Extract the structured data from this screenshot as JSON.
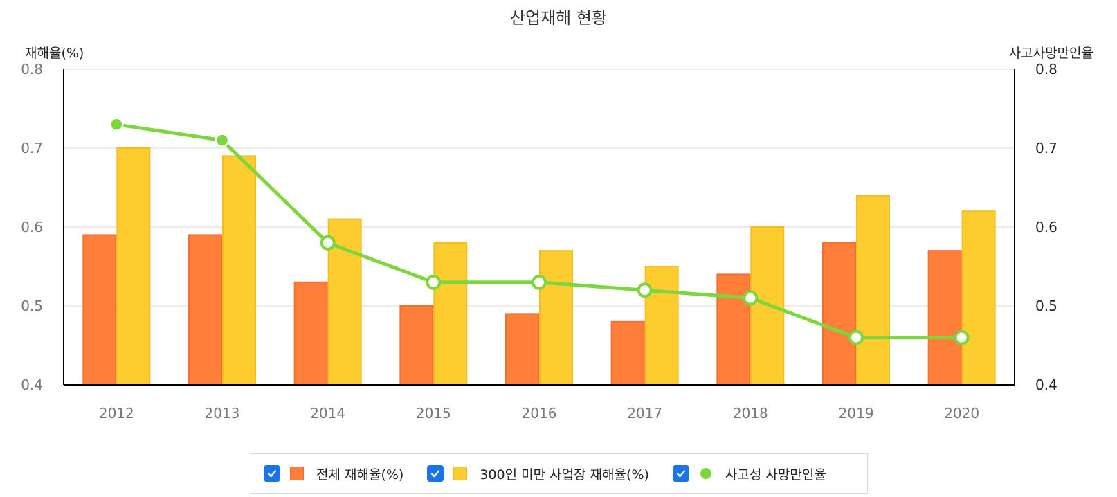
{
  "chart_data": {
    "type": "bar",
    "title": "산업재해 현황",
    "categories": [
      "2012",
      "2013",
      "2014",
      "2015",
      "2016",
      "2017",
      "2018",
      "2019",
      "2020"
    ],
    "y_left": {
      "label": "재해율(%)",
      "range": [
        0.4,
        0.8
      ],
      "ticks": [
        "0.8",
        "0.7",
        "0.6",
        "0.5",
        "0.4"
      ]
    },
    "y_right": {
      "label": "사고사망만인율",
      "range": [
        0.4,
        0.8
      ],
      "ticks": [
        "0.8",
        "0.7",
        "0.6",
        "0.5",
        "0.4"
      ]
    },
    "grid": true,
    "legend_position": "bottom",
    "series": [
      {
        "name": "전체 재해율(%)",
        "kind": "bar",
        "axis": "left",
        "color": "#FF7F3A",
        "values": [
          0.59,
          0.59,
          0.53,
          0.5,
          0.49,
          0.48,
          0.54,
          0.58,
          0.57
        ]
      },
      {
        "name": "300인 미만 사업장 재해율(%)",
        "kind": "bar",
        "axis": "left",
        "color": "#FDCD2F",
        "values": [
          0.7,
          0.69,
          0.61,
          0.58,
          0.57,
          0.55,
          0.6,
          0.64,
          0.62
        ]
      },
      {
        "name": "사고성 사망만인율",
        "kind": "line",
        "axis": "right",
        "color": "#7ED63E",
        "values": [
          0.73,
          0.71,
          0.58,
          0.53,
          0.53,
          0.52,
          0.51,
          0.46,
          0.46
        ]
      }
    ]
  },
  "legend": {
    "items": [
      {
        "label": "전체 재해율(%)",
        "checked": true
      },
      {
        "label": "300인 미만 사업장 재해율(%)",
        "checked": true
      },
      {
        "label": "사고성 사망만인율",
        "checked": true
      }
    ]
  }
}
